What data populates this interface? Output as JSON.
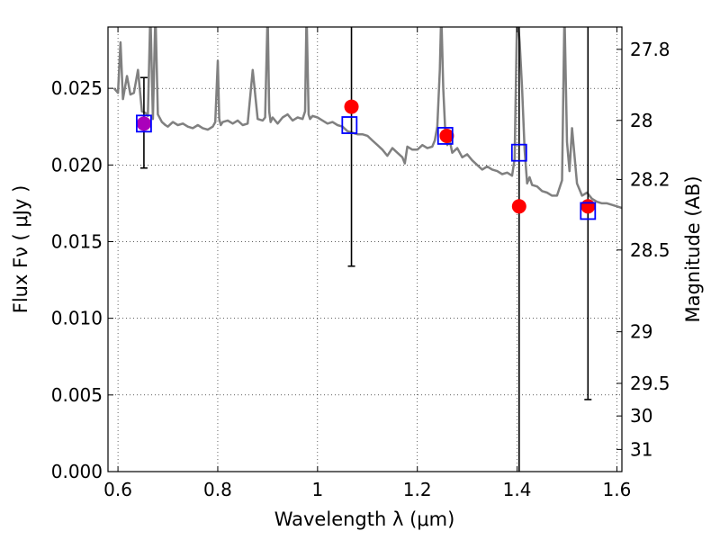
{
  "chart_data": {
    "type": "scatter",
    "xlabel": "Wavelength  λ (μm)",
    "ylabel": "Flux  Fν  ( μJy )",
    "ylabel_right": "Magnitude (AB)",
    "xlim": [
      0.58,
      1.61
    ],
    "ylim": [
      0.0,
      0.029
    ],
    "grid": true,
    "x_ticks": [
      0.6,
      0.8,
      1.0,
      1.2,
      1.4,
      1.6
    ],
    "x_tick_labels": [
      "0.6",
      "0.8",
      "1",
      "1.2",
      "1.4",
      "1.6"
    ],
    "y_ticks": [
      0.0,
      0.005,
      0.01,
      0.015,
      0.02,
      0.025
    ],
    "y_tick_labels": [
      "0.000",
      "0.005",
      "0.010",
      "0.015",
      "0.020",
      "0.025"
    ],
    "right_ticks": [
      {
        "mag": 27.8,
        "label": "27.8"
      },
      {
        "mag": 28.0,
        "label": "28"
      },
      {
        "mag": 28.2,
        "label": "28.2"
      },
      {
        "mag": 28.5,
        "label": "28.5"
      },
      {
        "mag": 29.0,
        "label": "29"
      },
      {
        "mag": 29.5,
        "label": "29.5"
      },
      {
        "mag": 30.0,
        "label": "30"
      },
      {
        "mag": 31.0,
        "label": "31"
      }
    ],
    "observed": {
      "color": "#ff0000",
      "points": [
        {
          "x": 0.652,
          "y": 0.0227,
          "yerr_low": 0.0198,
          "yerr_high": 0.0257
        },
        {
          "x": 1.068,
          "y": 0.0238,
          "yerr_low": 0.0134,
          "yerr_high": 0.0295
        },
        {
          "x": 1.259,
          "y": 0.0219,
          "yerr_low": null,
          "yerr_high": null
        },
        {
          "x": 1.404,
          "y": 0.0173,
          "yerr_low": 0.0,
          "yerr_high": 0.0295
        },
        {
          "x": 1.542,
          "y": 0.0173,
          "yerr_low": 0.0047,
          "yerr_high": 0.0295
        }
      ]
    },
    "model_photometry": {
      "color": "#0000ff",
      "points": [
        {
          "x": 0.652,
          "y": 0.0227
        },
        {
          "x": 1.064,
          "y": 0.0226
        },
        {
          "x": 1.256,
          "y": 0.0219
        },
        {
          "x": 1.404,
          "y": 0.0208
        },
        {
          "x": 1.542,
          "y": 0.017
        }
      ]
    },
    "overlap_marker_color": "#aa00bb",
    "model_spectrum": {
      "color": "#808080",
      "x": [
        0.592,
        0.6,
        0.605,
        0.61,
        0.618,
        0.625,
        0.632,
        0.64,
        0.648,
        0.655,
        0.66,
        0.665,
        0.67,
        0.675,
        0.68,
        0.688,
        0.695,
        0.7,
        0.71,
        0.72,
        0.73,
        0.74,
        0.75,
        0.76,
        0.77,
        0.78,
        0.79,
        0.795,
        0.8,
        0.803,
        0.806,
        0.81,
        0.82,
        0.83,
        0.84,
        0.85,
        0.86,
        0.87,
        0.88,
        0.89,
        0.895,
        0.9,
        0.903,
        0.906,
        0.91,
        0.92,
        0.93,
        0.94,
        0.95,
        0.955,
        0.96,
        0.97,
        0.975,
        0.978,
        0.982,
        0.985,
        0.99,
        1.0,
        1.01,
        1.02,
        1.03,
        1.04,
        1.05,
        1.06,
        1.07,
        1.08,
        1.09,
        1.1,
        1.11,
        1.12,
        1.13,
        1.14,
        1.15,
        1.16,
        1.17,
        1.175,
        1.18,
        1.19,
        1.2,
        1.21,
        1.22,
        1.23,
        1.235,
        1.24,
        1.245,
        1.248,
        1.252,
        1.256,
        1.26,
        1.265,
        1.27,
        1.28,
        1.29,
        1.3,
        1.31,
        1.32,
        1.33,
        1.34,
        1.35,
        1.36,
        1.37,
        1.38,
        1.39,
        1.395,
        1.4,
        1.405,
        1.41,
        1.415,
        1.42,
        1.425,
        1.43,
        1.44,
        1.45,
        1.46,
        1.47,
        1.48,
        1.49,
        1.495,
        1.5,
        1.505,
        1.51,
        1.52,
        1.53,
        1.54,
        1.55,
        1.56,
        1.57,
        1.58,
        1.59,
        1.6,
        1.61
      ],
      "y": [
        0.025,
        0.0247,
        0.028,
        0.0243,
        0.0258,
        0.0246,
        0.0247,
        0.0262,
        0.0235,
        0.0234,
        0.0232,
        0.03,
        0.023,
        0.03,
        0.0233,
        0.0228,
        0.0226,
        0.0225,
        0.0228,
        0.0226,
        0.0227,
        0.0225,
        0.0224,
        0.0226,
        0.0224,
        0.0223,
        0.0225,
        0.0228,
        0.0268,
        0.023,
        0.0226,
        0.0228,
        0.0229,
        0.0227,
        0.0229,
        0.0226,
        0.0227,
        0.0262,
        0.023,
        0.0229,
        0.0231,
        0.03,
        0.0235,
        0.0228,
        0.0231,
        0.0227,
        0.0231,
        0.0233,
        0.0229,
        0.023,
        0.0231,
        0.023,
        0.0235,
        0.03,
        0.0233,
        0.023,
        0.0232,
        0.0231,
        0.0229,
        0.0227,
        0.0228,
        0.0226,
        0.0225,
        0.0222,
        0.0221,
        0.022,
        0.022,
        0.0219,
        0.0216,
        0.0213,
        0.021,
        0.0206,
        0.0211,
        0.0208,
        0.0205,
        0.0201,
        0.0212,
        0.021,
        0.021,
        0.0213,
        0.0211,
        0.0212,
        0.0216,
        0.0225,
        0.0262,
        0.03,
        0.025,
        0.0221,
        0.0213,
        0.0216,
        0.0208,
        0.0211,
        0.0205,
        0.0207,
        0.0203,
        0.02,
        0.0197,
        0.0199,
        0.0197,
        0.0196,
        0.0194,
        0.0195,
        0.0193,
        0.0204,
        0.03,
        0.028,
        0.025,
        0.021,
        0.0188,
        0.0192,
        0.0187,
        0.0186,
        0.0183,
        0.0182,
        0.018,
        0.018,
        0.019,
        0.03,
        0.0215,
        0.0196,
        0.0224,
        0.0188,
        0.018,
        0.0182,
        0.0178,
        0.0176,
        0.0175,
        0.0175,
        0.0174,
        0.0173,
        0.0172
      ]
    }
  }
}
